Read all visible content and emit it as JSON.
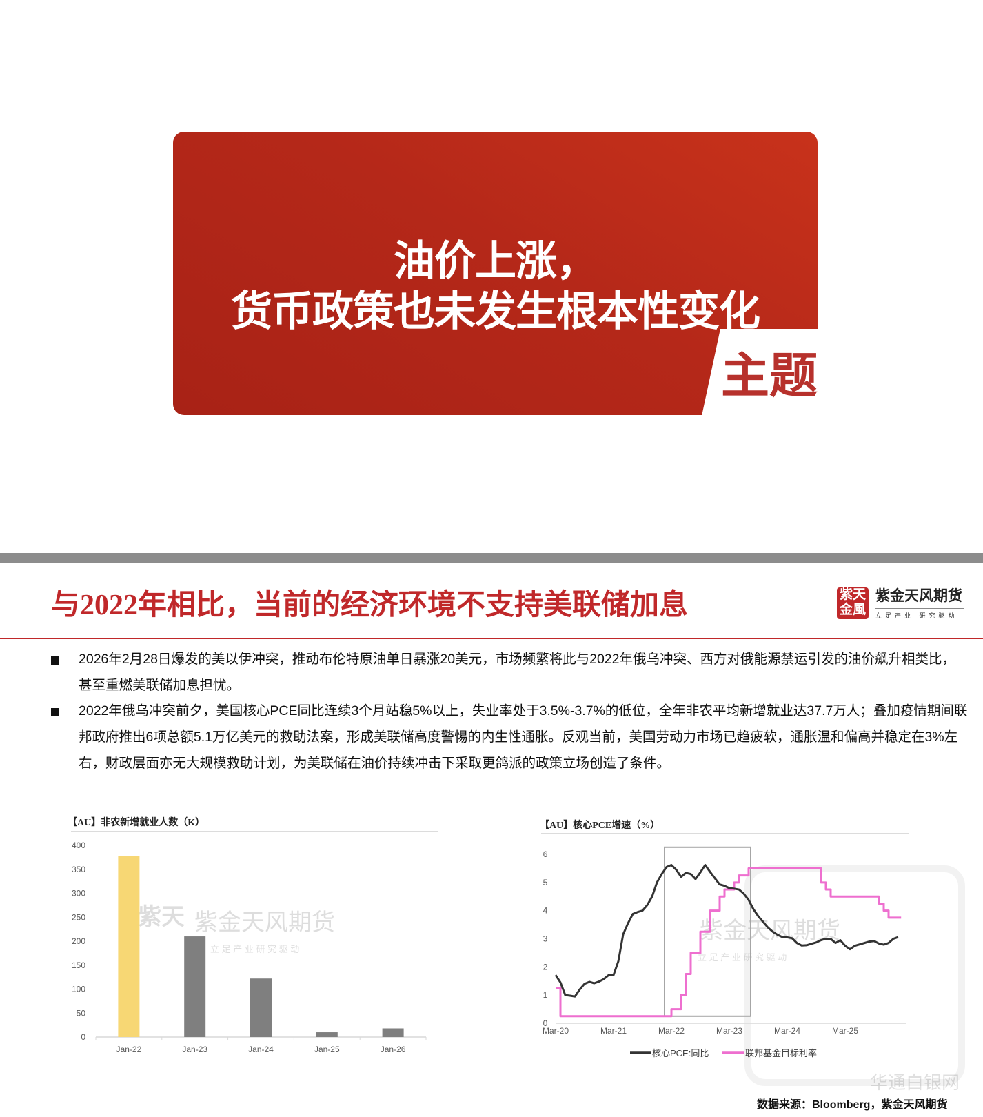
{
  "cover": {
    "title_line1": "油价上涨，",
    "title_line2": "货币政策也未发生根本性变化",
    "tag": "主题",
    "colors": {
      "card": "#b52819",
      "tag": "#b7312c"
    }
  },
  "slide": {
    "title": "与2022年相比，当前的经济环境不支持美联储加息",
    "accent_color": "#c0282a",
    "logo": {
      "seal": "紫天金風",
      "name": "紫金天风期货",
      "slogan": "立足产业 研究驱动"
    },
    "bullets": [
      "2026年2月28日爆发的美以伊冲突，推动布伦特原油单日暴涨20美元，市场频繁将此与2022年俄乌冲突、西方对俄能源禁运引发的油价飙升相类比，甚至重燃美联储加息担忧。",
      "2022年俄乌冲突前夕，美国核心PCE同比连续3个月站稳5%以上，失业率处于3.5%-3.7%的低位，全年非农平均新增就业达37.7万人；叠加疫情期间联邦政府推出6项总额5.1万亿美元的救助法案，形成美联储高度警惕的内生性通胀。反观当前，美国劳动力市场已趋疲软，通胀温和偏高并稳定在3%左右，财政层面亦无大规模救助计划，为美联储在油价持续冲击下采取更鸽派的政策立场创造了条件。"
    ],
    "source": "数据来源：Bloomberg，紫金天风期货",
    "watermarks": {
      "brand": "紫金天风期货",
      "slogan": "立 足 产 业   研 究 驱 动",
      "site": "华通白银网"
    }
  },
  "chart_data": [
    {
      "type": "bar",
      "title": "【AU】非农新增就业人数（K）",
      "categories": [
        "Jan-22",
        "Jan-23",
        "Jan-24",
        "Jan-25",
        "Jan-26"
      ],
      "values": [
        377,
        210,
        122,
        10,
        18
      ],
      "colors": [
        "#f7d774",
        "#7f7f7f",
        "#7f7f7f",
        "#7f7f7f",
        "#7f7f7f"
      ],
      "yticks": [
        "0",
        "50",
        "100",
        "150",
        "200",
        "250",
        "300",
        "350",
        "400"
      ],
      "ylim": [
        0,
        400
      ],
      "grid": false
    },
    {
      "type": "line",
      "title": "【AU】核心PCE增速（%）",
      "x_start": "Mar-20",
      "x_frequency": "monthly",
      "xticks": [
        "Mar-20",
        "Mar-21",
        "Mar-22",
        "Mar-23",
        "Mar-24",
        "Mar-25"
      ],
      "yticks": [
        "0",
        "1",
        "2",
        "3",
        "4",
        "5",
        "6"
      ],
      "ylim": [
        0,
        6
      ],
      "grid": false,
      "legend_position": "bottom",
      "highlight_box": {
        "x_from": "Feb-22",
        "x_to": "Jul-23",
        "y_from": 0.25,
        "y_to": 6.25,
        "color": "#a6a6a6"
      },
      "series": [
        {
          "name": "核心PCE:同比",
          "color": "#333333",
          "step": false,
          "values": [
            1.71,
            1.45,
            1.0,
            0.98,
            0.95,
            1.2,
            1.4,
            1.47,
            1.42,
            1.48,
            1.57,
            1.71,
            1.71,
            2.2,
            3.16,
            3.55,
            3.88,
            3.95,
            4.0,
            4.2,
            4.5,
            5.0,
            5.3,
            5.55,
            5.62,
            5.45,
            5.2,
            5.34,
            5.3,
            5.12,
            5.36,
            5.62,
            5.38,
            5.15,
            4.93,
            4.88,
            4.8,
            4.78,
            4.75,
            4.6,
            4.38,
            4.05,
            3.8,
            3.6,
            3.4,
            3.25,
            3.14,
            3.06,
            3.05,
            3.02,
            2.85,
            2.76,
            2.77,
            2.82,
            2.87,
            2.95,
            3.0,
            3.0,
            2.85,
            2.95,
            2.75,
            2.63,
            2.75,
            2.8,
            2.85,
            2.9,
            2.92,
            2.83,
            2.79,
            2.85,
            3.0,
            3.06
          ]
        },
        {
          "name": "联邦基金目标利率",
          "color": "#ee6fcf",
          "step": true,
          "values": [
            1.25,
            0.25,
            0.25,
            0.25,
            0.25,
            0.25,
            0.25,
            0.25,
            0.25,
            0.25,
            0.25,
            0.25,
            0.25,
            0.25,
            0.25,
            0.25,
            0.25,
            0.25,
            0.25,
            0.25,
            0.25,
            0.25,
            0.25,
            0.25,
            0.5,
            0.5,
            1.0,
            1.75,
            2.5,
            2.5,
            3.25,
            3.25,
            4.0,
            4.0,
            4.5,
            4.75,
            4.75,
            5.0,
            5.25,
            5.25,
            5.5,
            5.5,
            5.5,
            5.5,
            5.5,
            5.5,
            5.5,
            5.5,
            5.5,
            5.5,
            5.5,
            5.5,
            5.5,
            5.5,
            5.5,
            5.0,
            4.75,
            4.5,
            4.5,
            4.5,
            4.5,
            4.5,
            4.5,
            4.5,
            4.5,
            4.5,
            4.5,
            4.25,
            4.0,
            3.75,
            3.75,
            3.75
          ]
        }
      ]
    }
  ]
}
